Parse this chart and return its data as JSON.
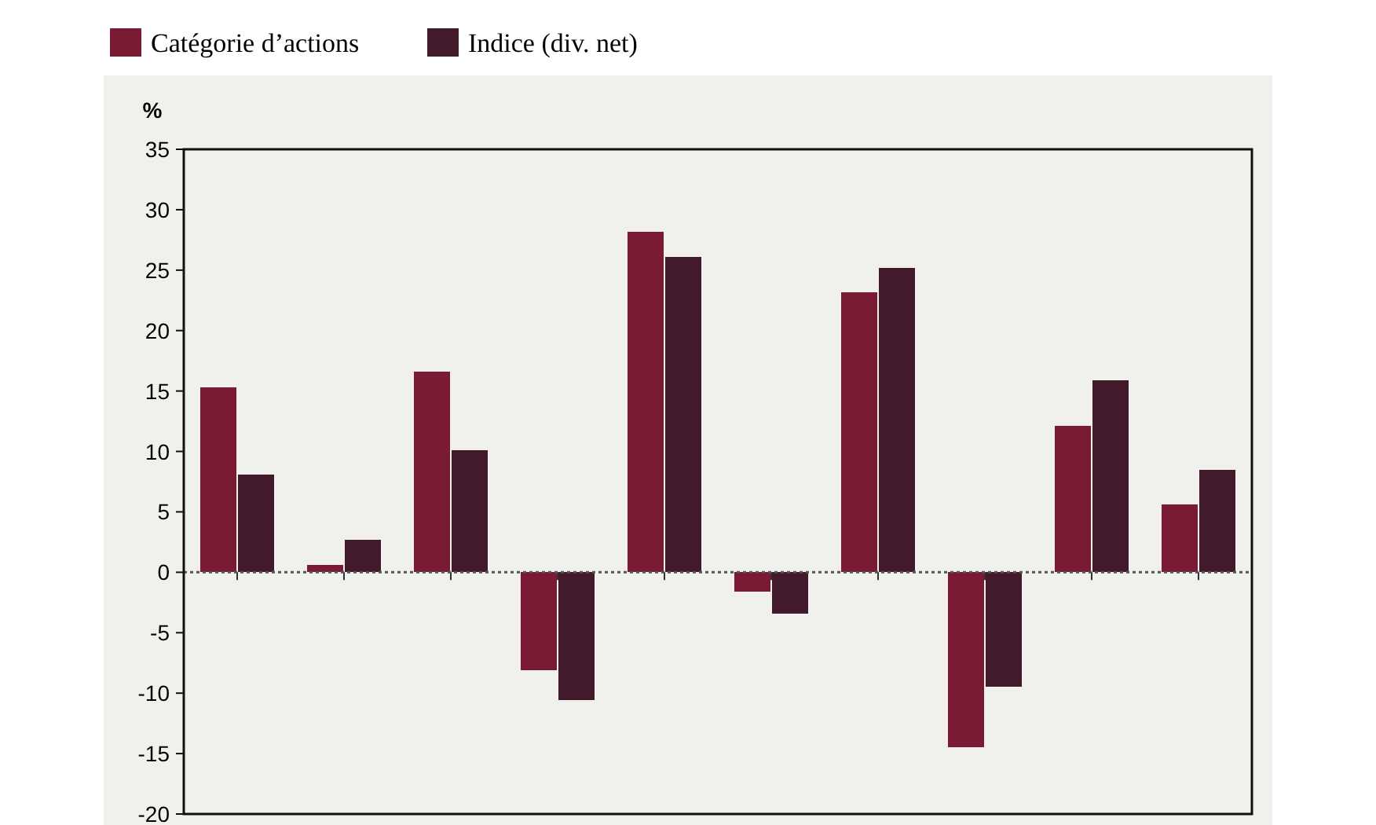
{
  "chart_data": {
    "type": "bar",
    "ylabel": "%",
    "categories": [
      null,
      null,
      null,
      null,
      null,
      null,
      null,
      null,
      null,
      null
    ],
    "series": [
      {
        "name": "Catégorie d’actions",
        "color": "#7a1a33",
        "values": [
          15.3,
          0.6,
          16.6,
          -8.1,
          28.2,
          -1.6,
          23.2,
          -14.5,
          12.1,
          5.6
        ]
      },
      {
        "name": "Indice (div. net)",
        "color": "#431a2c",
        "values": [
          8.1,
          2.7,
          10.1,
          -10.6,
          26.1,
          -3.4,
          25.2,
          -9.5,
          15.9,
          8.5
        ]
      }
    ],
    "ylim": [
      -20,
      35
    ],
    "yticks": [
      -20,
      -15,
      -10,
      -5,
      0,
      5,
      10,
      15,
      20,
      25,
      30,
      35
    ],
    "grid": false,
    "ref_lines": [
      {
        "axis": "y",
        "value": 0,
        "line_style": "dotted",
        "color": "#555555"
      }
    ],
    "legend": "top left"
  }
}
